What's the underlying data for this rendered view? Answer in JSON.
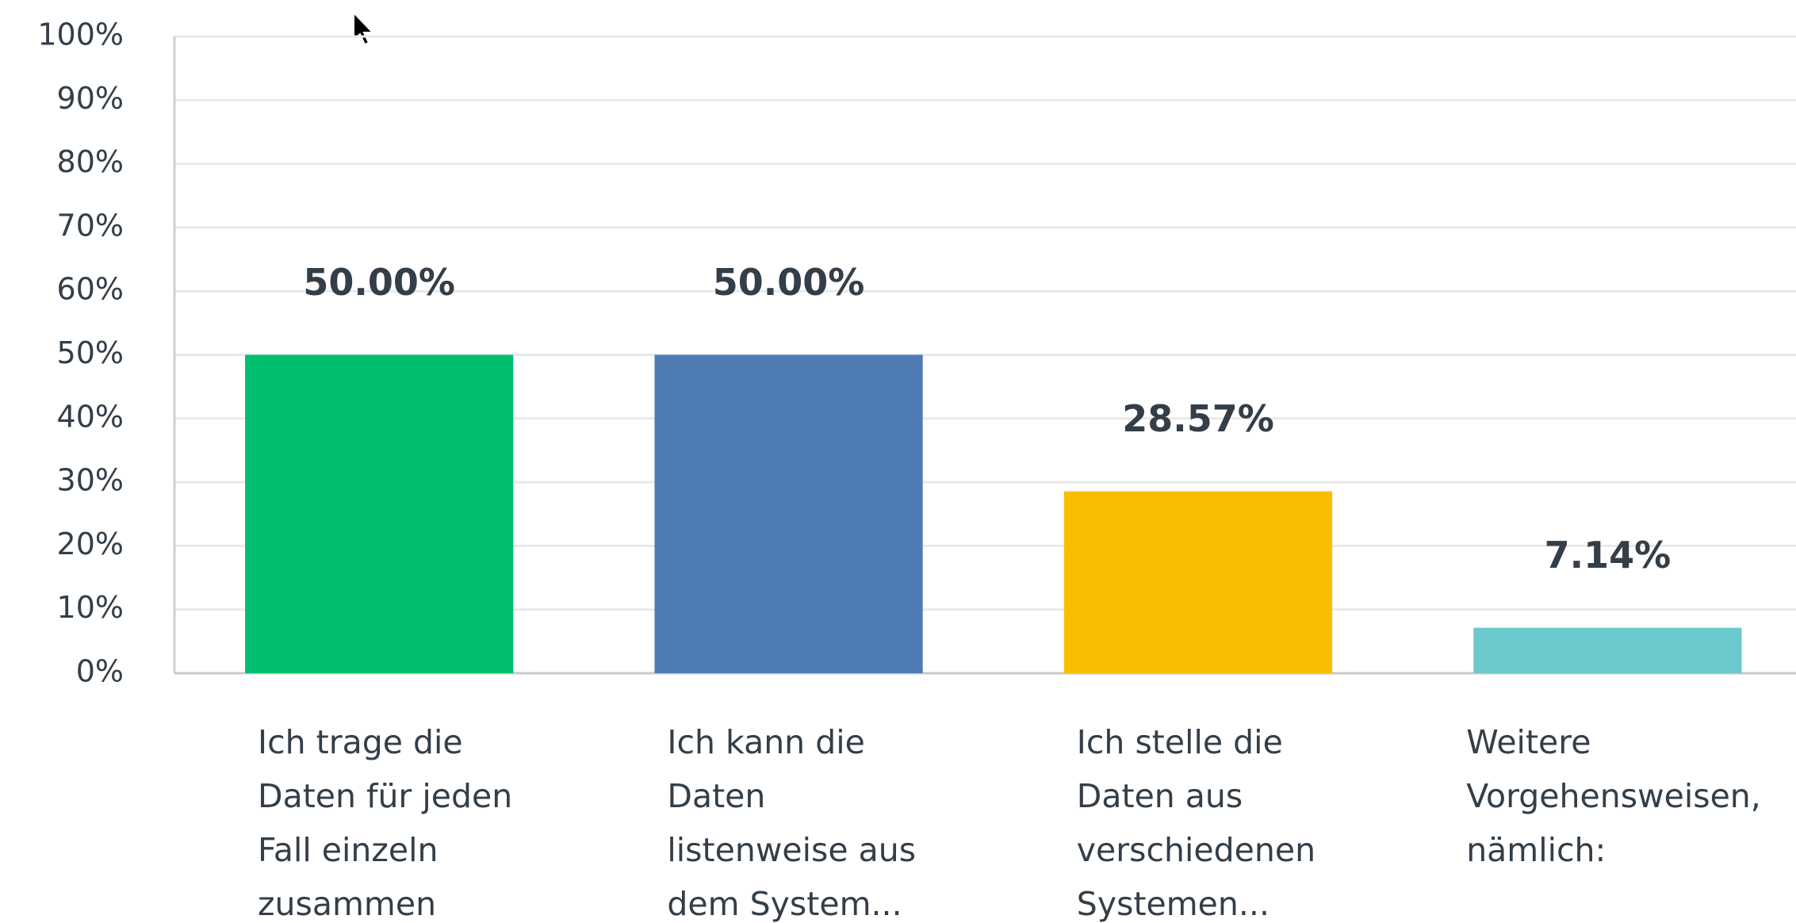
{
  "chart_data": {
    "type": "bar",
    "categories": [
      "Ich trage die Daten für jeden Fall einzeln zusammen",
      "Ich kann die Daten listenweise aus dem System...",
      "Ich stelle die Daten aus verschiedenen Systemen...",
      "Weitere Vorgehensweisen, nämlich:"
    ],
    "values": [
      50.0,
      50.0,
      28.57,
      7.14
    ],
    "value_labels": [
      "50.00%",
      "50.00%",
      "28.57%",
      "7.14%"
    ],
    "colors": [
      "#00bf6f",
      "#507cb6",
      "#f9be00",
      "#6bc8cd"
    ],
    "ylim": [
      0,
      100
    ],
    "yticks": [
      {
        "value": 0,
        "label": "0%"
      },
      {
        "value": 10,
        "label": "10%"
      },
      {
        "value": 20,
        "label": "20%"
      },
      {
        "value": 30,
        "label": "30%"
      },
      {
        "value": 40,
        "label": "40%"
      },
      {
        "value": 50,
        "label": "50%"
      },
      {
        "value": 60,
        "label": "60%"
      },
      {
        "value": 70,
        "label": "70%"
      },
      {
        "value": 80,
        "label": "80%"
      },
      {
        "value": 90,
        "label": "90%"
      },
      {
        "value": 100,
        "label": "100%"
      }
    ],
    "grid": true
  }
}
